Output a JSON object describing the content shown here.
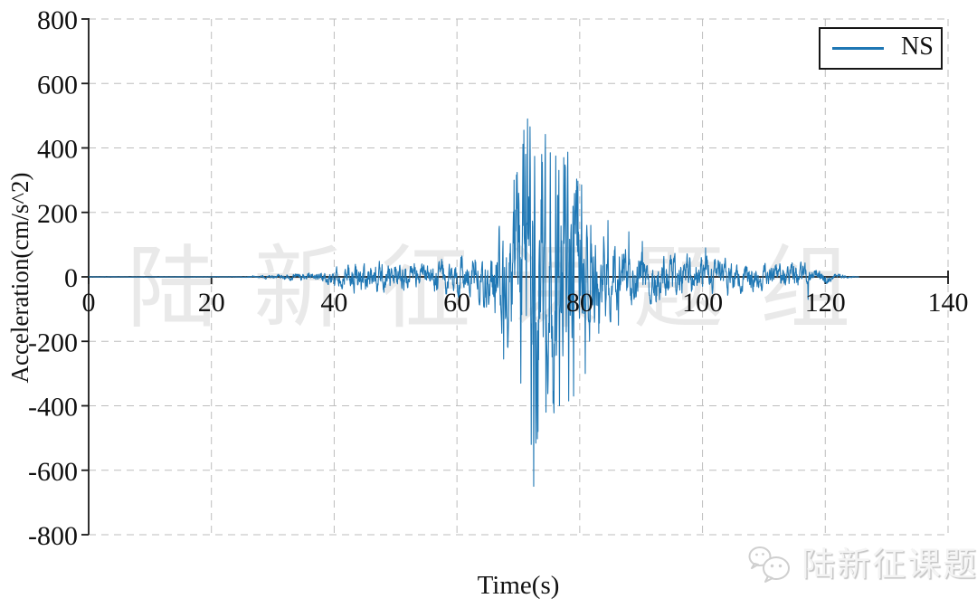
{
  "watermark": {
    "text": "陆新征课题组",
    "color": "#e9e9e9"
  },
  "footer": {
    "brand_text": "陆新征课题组",
    "icon": "wechat-icon"
  },
  "chart_data": {
    "type": "line",
    "title": "",
    "xlabel": "Time(s)",
    "ylabel": "Acceleration(cm/s^2)",
    "xlim": [
      0,
      140
    ],
    "ylim": [
      -800,
      800
    ],
    "x_ticks": [
      0,
      20,
      40,
      60,
      80,
      100,
      120,
      140
    ],
    "y_ticks": [
      800,
      600,
      400,
      200,
      0,
      -200,
      -400,
      -600,
      -800
    ],
    "grid": true,
    "grid_style": {
      "color": "#bdbdbd",
      "dash": "8 6"
    },
    "axis_color": "#1a1a1a",
    "legend": {
      "position": "upper right",
      "entries": [
        {
          "label": "NS",
          "color": "#1f77b4"
        }
      ]
    },
    "series": [
      {
        "name": "NS",
        "color": "#1f77b4",
        "sample_dt": 0.05,
        "signal_start": 0,
        "signal_end": 125.5,
        "noise_seed": 20080512,
        "peak_acceleration": 490,
        "min_acceleration": -650,
        "envelope": [
          [
            0,
            1
          ],
          [
            24,
            1
          ],
          [
            27,
            4
          ],
          [
            30,
            8
          ],
          [
            34,
            12
          ],
          [
            38,
            18
          ],
          [
            41,
            35
          ],
          [
            43,
            50
          ],
          [
            45,
            55
          ],
          [
            47,
            60
          ],
          [
            49,
            45
          ],
          [
            52,
            45
          ],
          [
            55,
            48
          ],
          [
            58,
            62
          ],
          [
            61,
            65
          ],
          [
            63,
            80
          ],
          [
            65,
            100
          ],
          [
            66,
            130
          ],
          [
            67,
            160
          ],
          [
            68,
            210
          ],
          [
            69,
            260
          ],
          [
            70,
            340
          ],
          [
            71,
            460
          ],
          [
            72,
            560
          ],
          [
            72.8,
            520
          ],
          [
            74,
            450
          ],
          [
            75,
            430
          ],
          [
            76,
            420
          ],
          [
            77,
            410
          ],
          [
            78,
            390
          ],
          [
            78.8,
            340
          ],
          [
            80,
            290
          ],
          [
            81,
            230
          ],
          [
            82,
            185
          ],
          [
            83,
            170
          ],
          [
            84,
            160
          ],
          [
            85,
            140
          ],
          [
            86,
            128
          ],
          [
            88,
            110
          ],
          [
            90,
            95
          ],
          [
            92,
            85
          ],
          [
            95,
            78
          ],
          [
            98,
            70
          ],
          [
            100,
            66
          ],
          [
            103,
            60
          ],
          [
            106,
            52
          ],
          [
            108,
            47
          ],
          [
            110,
            42
          ],
          [
            112,
            40
          ],
          [
            114,
            42
          ],
          [
            116,
            46
          ],
          [
            117,
            42
          ],
          [
            118,
            34
          ],
          [
            119,
            30
          ],
          [
            120,
            22
          ],
          [
            121,
            14
          ],
          [
            122,
            9
          ],
          [
            123,
            6
          ],
          [
            124,
            4
          ],
          [
            125,
            2
          ],
          [
            125.5,
            1
          ]
        ],
        "peak_values": [
          [
            67.6,
            -255
          ],
          [
            69.3,
            300
          ],
          [
            70.4,
            -330
          ],
          [
            70.9,
            455
          ],
          [
            71.5,
            490
          ],
          [
            72.1,
            -520
          ],
          [
            72.5,
            -650
          ],
          [
            73.2,
            -480
          ],
          [
            73.8,
            380
          ],
          [
            74.5,
            -420
          ],
          [
            75.2,
            385
          ],
          [
            76.1,
            375
          ],
          [
            76.7,
            -400
          ],
          [
            77.4,
            370
          ],
          [
            78.2,
            -385
          ],
          [
            79.0,
            -370
          ],
          [
            79.6,
            280
          ],
          [
            80.3,
            285
          ],
          [
            80.9,
            -300
          ],
          [
            81.8,
            160
          ],
          [
            83.1,
            -175
          ],
          [
            84.6,
            175
          ],
          [
            86.3,
            -150
          ],
          [
            88.0,
            140
          ],
          [
            90.2,
            110
          ],
          [
            100.5,
            90
          ],
          [
            117.2,
            -70
          ]
        ]
      }
    ]
  }
}
